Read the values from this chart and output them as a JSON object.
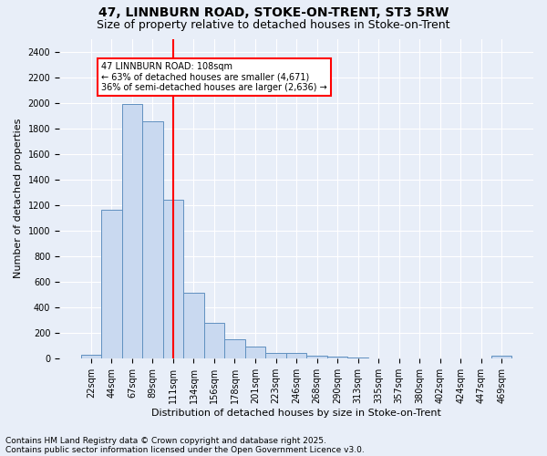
{
  "title1": "47, LINNBURN ROAD, STOKE-ON-TRENT, ST3 5RW",
  "title2": "Size of property relative to detached houses in Stoke-on-Trent",
  "xlabel": "Distribution of detached houses by size in Stoke-on-Trent",
  "ylabel": "Number of detached properties",
  "bar_labels": [
    "22sqm",
    "44sqm",
    "67sqm",
    "89sqm",
    "111sqm",
    "134sqm",
    "156sqm",
    "178sqm",
    "201sqm",
    "223sqm",
    "246sqm",
    "268sqm",
    "290sqm",
    "313sqm",
    "335sqm",
    "357sqm",
    "380sqm",
    "402sqm",
    "424sqm",
    "447sqm",
    "469sqm"
  ],
  "bar_values": [
    25,
    1165,
    1990,
    1855,
    1240,
    515,
    275,
    150,
    90,
    45,
    45,
    20,
    15,
    5,
    2,
    2,
    2,
    2,
    2,
    2,
    20
  ],
  "bar_color": "#c9d9f0",
  "bar_edge_color": "#6090c0",
  "vline_x_index": 4,
  "vline_color": "red",
  "annotation_text": "47 LINNBURN ROAD: 108sqm\n← 63% of detached houses are smaller (4,671)\n36% of semi-detached houses are larger (2,636) →",
  "annotation_box_color": "white",
  "annotation_box_edge_color": "red",
  "footer1": "Contains HM Land Registry data © Crown copyright and database right 2025.",
  "footer2": "Contains public sector information licensed under the Open Government Licence v3.0.",
  "ylim": [
    0,
    2500
  ],
  "yticks": [
    0,
    200,
    400,
    600,
    800,
    1000,
    1200,
    1400,
    1600,
    1800,
    2000,
    2200,
    2400
  ],
  "background_color": "#e8eef8",
  "grid_color": "white",
  "title_fontsize": 10,
  "subtitle_fontsize": 9,
  "tick_fontsize": 7,
  "ylabel_fontsize": 8,
  "xlabel_fontsize": 8,
  "footer_fontsize": 6.5
}
